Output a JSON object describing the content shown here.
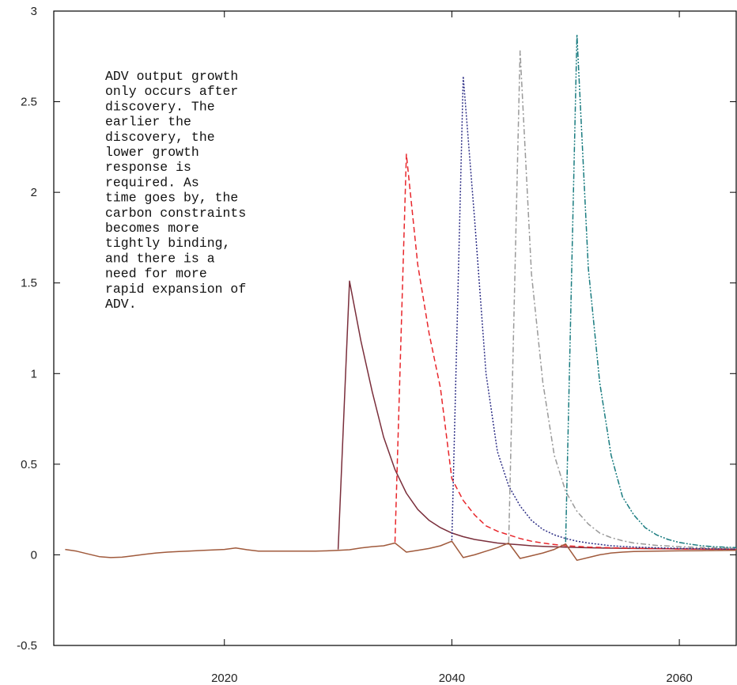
{
  "chart_data": {
    "type": "line",
    "title": "",
    "xlabel": "",
    "ylabel": "",
    "xlim": [
      2005,
      2065
    ],
    "ylim": [
      -0.5,
      3
    ],
    "x_ticks": [
      2020,
      2040,
      2060
    ],
    "y_ticks": [
      -0.5,
      0,
      0.5,
      1,
      1.5,
      2,
      2.5,
      3
    ],
    "x_tick_labels": [
      "2020",
      "2040",
      "2060"
    ],
    "y_tick_labels": [
      "-0.5",
      "0",
      "0.5",
      "1",
      "1.5",
      "2",
      "2.5",
      "3"
    ],
    "grid": false,
    "legend": "none",
    "annotation": [
      "ADV output growth",
      "only occurs after",
      "discovery.  The",
      "earlier the",
      "discovery, the",
      "lower growth",
      "response is",
      "required.   As",
      "time goes by, the",
      "carbon constraints",
      "becomes more",
      "tightly binding,",
      "and there is a",
      "need for more",
      "rapid expansion of",
      "ADV."
    ],
    "series": [
      {
        "color": "#7a2e3b",
        "dash": "solid",
        "points": [
          [
            2030,
            0.03
          ],
          [
            2031,
            1.51
          ],
          [
            2032,
            1.18
          ],
          [
            2033,
            0.9
          ],
          [
            2034,
            0.65
          ],
          [
            2035,
            0.47
          ],
          [
            2036,
            0.34
          ],
          [
            2037,
            0.25
          ],
          [
            2038,
            0.19
          ],
          [
            2039,
            0.15
          ],
          [
            2040,
            0.12
          ],
          [
            2041,
            0.1
          ],
          [
            2042,
            0.085
          ],
          [
            2043,
            0.075
          ],
          [
            2044,
            0.065
          ],
          [
            2045,
            0.06
          ],
          [
            2046,
            0.055
          ],
          [
            2047,
            0.05
          ],
          [
            2048,
            0.047
          ],
          [
            2049,
            0.044
          ],
          [
            2050,
            0.042
          ],
          [
            2052,
            0.039
          ],
          [
            2054,
            0.037
          ],
          [
            2056,
            0.035
          ],
          [
            2058,
            0.034
          ],
          [
            2060,
            0.033
          ],
          [
            2062,
            0.032
          ],
          [
            2064,
            0.031
          ],
          [
            2065,
            0.031
          ]
        ]
      },
      {
        "color": "#e8262b",
        "dash": "dashed",
        "points": [
          [
            2035,
            0.07
          ],
          [
            2036,
            2.21
          ],
          [
            2037,
            1.6
          ],
          [
            2038,
            1.22
          ],
          [
            2039,
            0.92
          ],
          [
            2040,
            0.42
          ],
          [
            2041,
            0.3
          ],
          [
            2042,
            0.22
          ],
          [
            2043,
            0.16
          ],
          [
            2044,
            0.13
          ],
          [
            2045,
            0.11
          ],
          [
            2046,
            0.09
          ],
          [
            2047,
            0.075
          ],
          [
            2048,
            0.065
          ],
          [
            2049,
            0.057
          ],
          [
            2050,
            0.05
          ],
          [
            2052,
            0.043
          ],
          [
            2054,
            0.039
          ],
          [
            2056,
            0.036
          ],
          [
            2058,
            0.034
          ],
          [
            2060,
            0.032
          ],
          [
            2062,
            0.031
          ],
          [
            2065,
            0.03
          ]
        ]
      },
      {
        "color": "#2e2f86",
        "dash": "dotted",
        "points": [
          [
            2040,
            0.08
          ],
          [
            2041,
            2.64
          ],
          [
            2042,
            1.85
          ],
          [
            2043,
            1.0
          ],
          [
            2044,
            0.57
          ],
          [
            2045,
            0.38
          ],
          [
            2046,
            0.27
          ],
          [
            2047,
            0.19
          ],
          [
            2048,
            0.14
          ],
          [
            2049,
            0.11
          ],
          [
            2050,
            0.09
          ],
          [
            2051,
            0.075
          ],
          [
            2052,
            0.065
          ],
          [
            2054,
            0.05
          ],
          [
            2056,
            0.043
          ],
          [
            2058,
            0.039
          ],
          [
            2060,
            0.036
          ],
          [
            2062,
            0.034
          ],
          [
            2065,
            0.032
          ]
        ]
      },
      {
        "color": "#9a9a9a",
        "dash": "dashdot",
        "points": [
          [
            2045,
            0.07
          ],
          [
            2046,
            2.78
          ],
          [
            2047,
            1.55
          ],
          [
            2048,
            0.95
          ],
          [
            2049,
            0.55
          ],
          [
            2050,
            0.35
          ],
          [
            2051,
            0.24
          ],
          [
            2052,
            0.17
          ],
          [
            2053,
            0.12
          ],
          [
            2054,
            0.095
          ],
          [
            2055,
            0.078
          ],
          [
            2056,
            0.065
          ],
          [
            2058,
            0.052
          ],
          [
            2060,
            0.045
          ],
          [
            2062,
            0.04
          ],
          [
            2065,
            0.036
          ]
        ]
      },
      {
        "color": "#1a7c80",
        "dash": "dashdotdot",
        "points": [
          [
            2050,
            0.07
          ],
          [
            2051,
            2.87
          ],
          [
            2052,
            1.58
          ],
          [
            2053,
            0.95
          ],
          [
            2054,
            0.55
          ],
          [
            2055,
            0.32
          ],
          [
            2056,
            0.22
          ],
          [
            2057,
            0.15
          ],
          [
            2058,
            0.11
          ],
          [
            2059,
            0.085
          ],
          [
            2060,
            0.068
          ],
          [
            2061,
            0.058
          ],
          [
            2062,
            0.05
          ],
          [
            2063,
            0.045
          ],
          [
            2065,
            0.04
          ]
        ]
      },
      {
        "color": "#a05a3c",
        "dash": "solid",
        "points": [
          [
            2006,
            0.03
          ],
          [
            2007,
            0.02
          ],
          [
            2008,
            0.005
          ],
          [
            2009,
            -0.01
          ],
          [
            2010,
            -0.015
          ],
          [
            2011,
            -0.013
          ],
          [
            2012,
            -0.005
          ],
          [
            2013,
            0.003
          ],
          [
            2014,
            0.01
          ],
          [
            2015,
            0.015
          ],
          [
            2016,
            0.018
          ],
          [
            2017,
            0.021
          ],
          [
            2018,
            0.024
          ],
          [
            2019,
            0.027
          ],
          [
            2020,
            0.03
          ],
          [
            2021,
            0.038
          ],
          [
            2022,
            0.028
          ],
          [
            2023,
            0.02
          ],
          [
            2024,
            0.02
          ],
          [
            2025,
            0.02
          ],
          [
            2026,
            0.02
          ],
          [
            2027,
            0.02
          ],
          [
            2028,
            0.02
          ],
          [
            2029,
            0.022
          ],
          [
            2030,
            0.025
          ],
          [
            2031,
            0.028
          ],
          [
            2032,
            0.038
          ],
          [
            2033,
            0.045
          ],
          [
            2034,
            0.05
          ],
          [
            2035,
            0.065
          ],
          [
            2036,
            0.015
          ],
          [
            2037,
            0.025
          ],
          [
            2038,
            0.035
          ],
          [
            2039,
            0.05
          ],
          [
            2040,
            0.075
          ],
          [
            2041,
            -0.015
          ],
          [
            2042,
            0.0
          ],
          [
            2043,
            0.02
          ],
          [
            2044,
            0.04
          ],
          [
            2045,
            0.065
          ],
          [
            2046,
            -0.02
          ],
          [
            2047,
            -0.005
          ],
          [
            2048,
            0.01
          ],
          [
            2049,
            0.03
          ],
          [
            2050,
            0.06
          ],
          [
            2051,
            -0.03
          ],
          [
            2052,
            -0.015
          ],
          [
            2053,
            0.0
          ],
          [
            2054,
            0.01
          ],
          [
            2055,
            0.015
          ],
          [
            2056,
            0.018
          ],
          [
            2058,
            0.02
          ],
          [
            2060,
            0.022
          ],
          [
            2062,
            0.023
          ],
          [
            2065,
            0.025
          ]
        ]
      }
    ]
  }
}
